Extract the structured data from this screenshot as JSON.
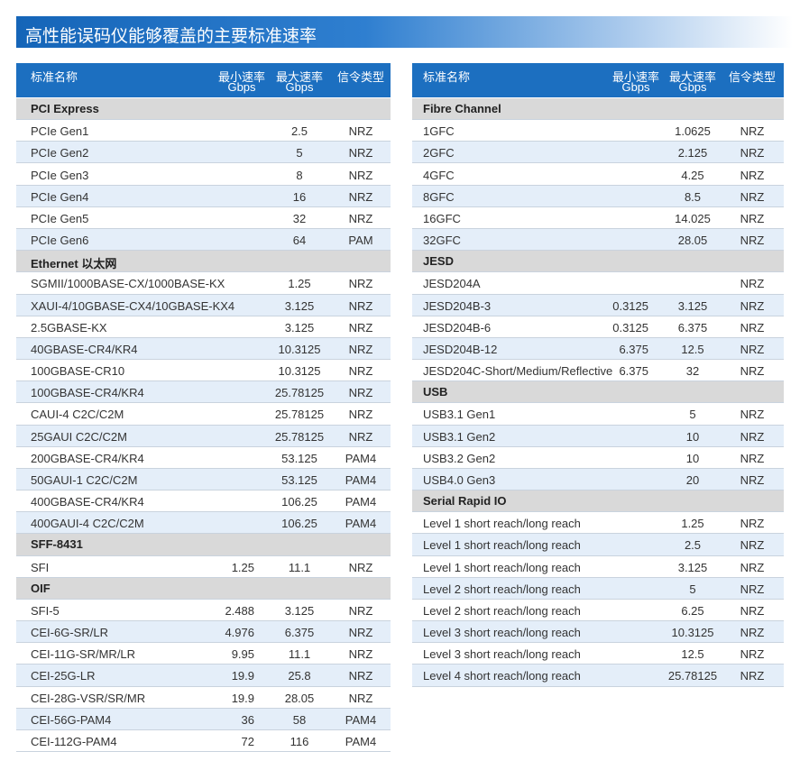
{
  "title": "高性能误码仪能够覆盖的主要标准速率",
  "tables": [
    {
      "header": [
        [
          "标准名称"
        ],
        [
          "最小速率",
          "Gbps"
        ],
        [
          "最大速率",
          "Gbps"
        ],
        [
          "信令类型"
        ]
      ],
      "sections": [
        {
          "title": "PCI Express",
          "rows": [
            [
              "PCIe Gen1",
              null,
              "2.5",
              "NRZ"
            ],
            [
              "PCIe Gen2",
              null,
              "5",
              "NRZ"
            ],
            [
              "PCIe Gen3",
              null,
              "8",
              "NRZ"
            ],
            [
              "PCIe Gen4",
              null,
              "16",
              "NRZ"
            ],
            [
              "PCIe Gen5",
              null,
              "32",
              "NRZ"
            ],
            [
              "PCIe Gen6",
              null,
              "64",
              "PAM"
            ]
          ]
        },
        {
          "title": "Ethernet 以太网",
          "rows": [
            [
              "SGMII/1000BASE-CX/1000BASE-KX",
              null,
              "1.25",
              "NRZ"
            ],
            [
              "XAUI-4/10GBASE-CX4/10GBASE-KX4",
              null,
              "3.125",
              "NRZ"
            ],
            [
              "2.5GBASE-KX",
              null,
              "3.125",
              "NRZ"
            ],
            [
              "40GBASE-CR4/KR4",
              null,
              "10.3125",
              "NRZ"
            ],
            [
              "100GBASE-CR10",
              null,
              "10.3125",
              "NRZ"
            ],
            [
              "100GBASE-CR4/KR4",
              null,
              "25.78125",
              "NRZ"
            ],
            [
              "CAUI-4 C2C/C2M",
              null,
              "25.78125",
              "NRZ"
            ],
            [
              "25GAUI C2C/C2M",
              null,
              "25.78125",
              "NRZ"
            ],
            [
              "200GBASE-CR4/KR4",
              null,
              "53.125",
              "PAM4"
            ],
            [
              "50GAUI-1 C2C/C2M",
              null,
              "53.125",
              "PAM4"
            ],
            [
              "400GBASE-CR4/KR4",
              null,
              "106.25",
              "PAM4"
            ],
            [
              "400GAUI-4 C2C/C2M",
              null,
              "106.25",
              "PAM4"
            ]
          ]
        },
        {
          "title": "SFF-8431",
          "rows": [
            [
              "SFI",
              "1.25",
              "11.1",
              "NRZ"
            ]
          ]
        },
        {
          "title": "OIF",
          "rows": [
            [
              "SFI-5",
              "2.488",
              "3.125",
              "NRZ"
            ],
            [
              "CEI-6G-SR/LR",
              "4.976",
              "6.375",
              "NRZ"
            ],
            [
              "CEI-11G-SR/MR/LR",
              "9.95",
              "11.1",
              "NRZ"
            ],
            [
              "CEI-25G-LR",
              "19.9",
              "25.8",
              "NRZ"
            ],
            [
              "CEI-28G-VSR/SR/MR",
              "19.9",
              "28.05",
              "NRZ"
            ],
            [
              "CEI-56G-PAM4",
              "36",
              "58",
              "PAM4"
            ],
            [
              "CEI-112G-PAM4",
              "72",
              "116",
              "PAM4"
            ]
          ]
        }
      ]
    },
    {
      "header": [
        [
          "标准名称"
        ],
        [
          "最小速率",
          "Gbps"
        ],
        [
          "最大速率",
          "Gbps"
        ],
        [
          "信令类型"
        ]
      ],
      "sections": [
        {
          "title": "Fibre Channel",
          "rows": [
            [
              "1GFC",
              null,
              "1.0625",
              "NRZ"
            ],
            [
              "2GFC",
              null,
              "2.125",
              "NRZ"
            ],
            [
              "4GFC",
              null,
              "4.25",
              "NRZ"
            ],
            [
              "8GFC",
              null,
              "8.5",
              "NRZ"
            ],
            [
              "16GFC",
              null,
              "14.025",
              "NRZ"
            ],
            [
              "32GFC",
              null,
              "28.05",
              "NRZ"
            ]
          ]
        },
        {
          "title": "JESD",
          "rows": [
            [
              "JESD204A",
              null,
              null,
              "NRZ"
            ],
            [
              "JESD204B-3",
              "0.3125",
              "3.125",
              "NRZ"
            ],
            [
              "JESD204B-6",
              "0.3125",
              "6.375",
              "NRZ"
            ],
            [
              "JESD204B-12",
              "6.375",
              "12.5",
              "NRZ"
            ],
            [
              "JESD204C-Short/Medium/Reflective",
              "6.375",
              "32",
              "NRZ"
            ]
          ]
        },
        {
          "title": "USB",
          "rows": [
            [
              "USB3.1 Gen1",
              null,
              "5",
              "NRZ"
            ],
            [
              "USB3.1 Gen2",
              null,
              "10",
              "NRZ"
            ],
            [
              "USB3.2 Gen2",
              null,
              "10",
              "NRZ"
            ],
            [
              "USB4.0 Gen3",
              null,
              "20",
              "NRZ"
            ]
          ]
        },
        {
          "title": "Serial Rapid IO",
          "rows": [
            [
              "Level 1 short reach/long reach",
              null,
              "1.25",
              "NRZ"
            ],
            [
              "Level 1 short reach/long reach",
              null,
              "2.5",
              "NRZ"
            ],
            [
              "Level 1 short reach/long reach",
              null,
              "3.125",
              "NRZ"
            ],
            [
              "Level 2 short reach/long reach",
              null,
              "5",
              "NRZ"
            ],
            [
              "Level 2 short reach/long reach",
              null,
              "6.25",
              "NRZ"
            ],
            [
              "Level 3 short reach/long reach",
              null,
              "10.3125",
              "NRZ"
            ],
            [
              "Level 3 short reach/long reach",
              null,
              "12.5",
              "NRZ"
            ],
            [
              "Level 4 short reach/long reach",
              null,
              "25.78125",
              "NRZ"
            ]
          ]
        }
      ]
    }
  ]
}
